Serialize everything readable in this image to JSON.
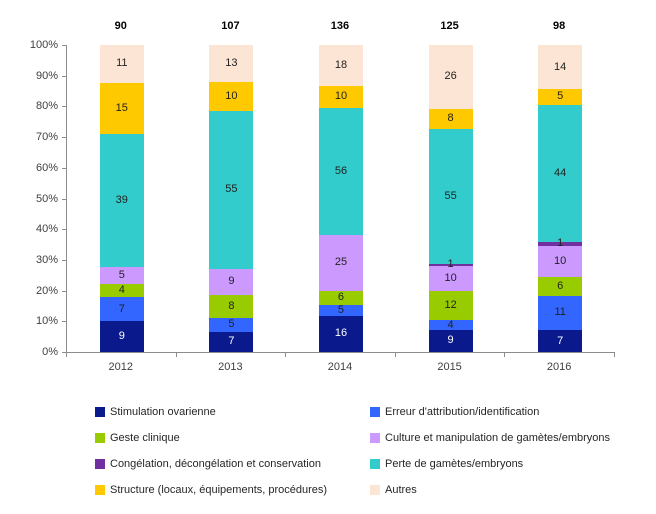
{
  "chart_data": {
    "type": "bar",
    "variant": "stacked-100-percent-column",
    "title": "",
    "xlabel": "",
    "ylabel": "",
    "ylim": [
      0,
      100
    ],
    "grid": false,
    "legend_position": "bottom-two-columns",
    "categories": [
      "2012",
      "2013",
      "2014",
      "2015",
      "2016"
    ],
    "totals": [
      90,
      107,
      136,
      125,
      98
    ],
    "y_ticks": [
      "100%",
      "90%",
      "80%",
      "70%",
      "60%",
      "50%",
      "40%",
      "30%",
      "20%",
      "10%",
      "0%"
    ],
    "series": [
      {
        "name": "Stimulation ovarienne",
        "color": "#0a1a8c",
        "label_color": "light",
        "values": [
          9,
          7,
          16,
          9,
          7
        ]
      },
      {
        "name": "Erreur d'attribution/identification",
        "color": "#3366ff",
        "label_color": "dark",
        "values": [
          7,
          5,
          5,
          4,
          11
        ]
      },
      {
        "name": "Geste clinique",
        "color": "#99cc00",
        "label_color": "dark",
        "values": [
          4,
          8,
          6,
          12,
          6
        ]
      },
      {
        "name": "Culture et manipulation de gamètes/embryons",
        "color": "#cc99ff",
        "label_color": "dark",
        "values": [
          5,
          9,
          25,
          10,
          10
        ]
      },
      {
        "name": "Congélation, décongélation et conservation",
        "color": "#7030a0",
        "label_color": "dark",
        "values": [
          0,
          0,
          0,
          1,
          1
        ]
      },
      {
        "name": "Perte de gamètes/embryons",
        "color": "#33cccc",
        "label_color": "dark",
        "values": [
          39,
          55,
          56,
          55,
          44
        ]
      },
      {
        "name": "Structure (locaux, équipements, procédures)",
        "color": "#ffc900",
        "label_color": "dark",
        "values": [
          15,
          10,
          10,
          8,
          5
        ]
      },
      {
        "name": "Autres",
        "color": "#fce5d5",
        "label_color": "dark",
        "values": [
          11,
          13,
          18,
          26,
          14
        ]
      }
    ]
  }
}
